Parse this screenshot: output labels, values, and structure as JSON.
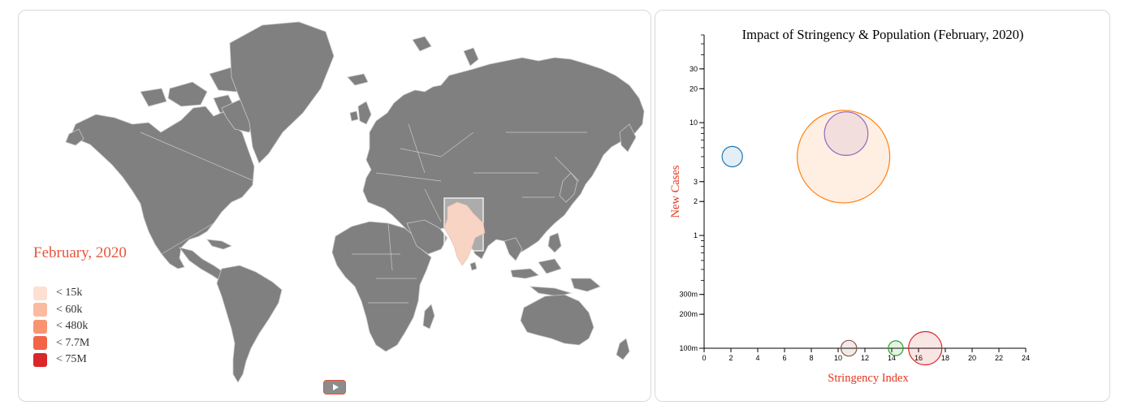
{
  "map": {
    "month_label": "February, 2020",
    "highlighted_country": "India",
    "land_color": "#808080",
    "border_color": "#c8c8c8",
    "highlight_color": "#f7d4c4",
    "legend": [
      {
        "label": "< 15k",
        "color": "#fde0d2"
      },
      {
        "label": "< 60k",
        "color": "#fbbba0"
      },
      {
        "label": "< 480k",
        "color": "#f89471"
      },
      {
        "label": "< 7.7M",
        "color": "#f26448"
      },
      {
        "label": "< 75M",
        "color": "#d9272a"
      }
    ],
    "play_icon": "play-icon"
  },
  "chart_data": {
    "type": "scatter",
    "title": "Impact of Stringency & Population (February, 2020)",
    "xlabel": "Stringency Index",
    "ylabel": "New Cases",
    "xlim": [
      0,
      24
    ],
    "ylim": [
      0.1,
      60
    ],
    "yscale": "log",
    "xticks": [
      0,
      2,
      4,
      6,
      8,
      10,
      12,
      14,
      16,
      18,
      20,
      22,
      24
    ],
    "yticks": [
      {
        "value": 0.1,
        "label": "100m"
      },
      {
        "value": 0.2,
        "label": "200m"
      },
      {
        "value": 0.3,
        "label": "300m"
      },
      {
        "value": 1,
        "label": "1"
      },
      {
        "value": 2,
        "label": "2"
      },
      {
        "value": 3,
        "label": "3"
      },
      {
        "value": 10,
        "label": "10"
      },
      {
        "value": 20,
        "label": "20"
      },
      {
        "value": 30,
        "label": "30"
      }
    ],
    "points": [
      {
        "x": 2.1,
        "y": 5,
        "size": 0.22,
        "color": "#1f77b4"
      },
      {
        "x": 10.4,
        "y": 5,
        "size": 1.0,
        "color": "#ff7f0e"
      },
      {
        "x": 10.6,
        "y": 8,
        "size": 0.47,
        "color": "#9467bd"
      },
      {
        "x": 10.8,
        "y": 0.1,
        "size": 0.17,
        "color": "#8c564b"
      },
      {
        "x": 14.3,
        "y": 0.1,
        "size": 0.16,
        "color": "#2ca02c"
      },
      {
        "x": 16.5,
        "y": 0.1,
        "size": 0.36,
        "color": "#d62728"
      }
    ]
  }
}
